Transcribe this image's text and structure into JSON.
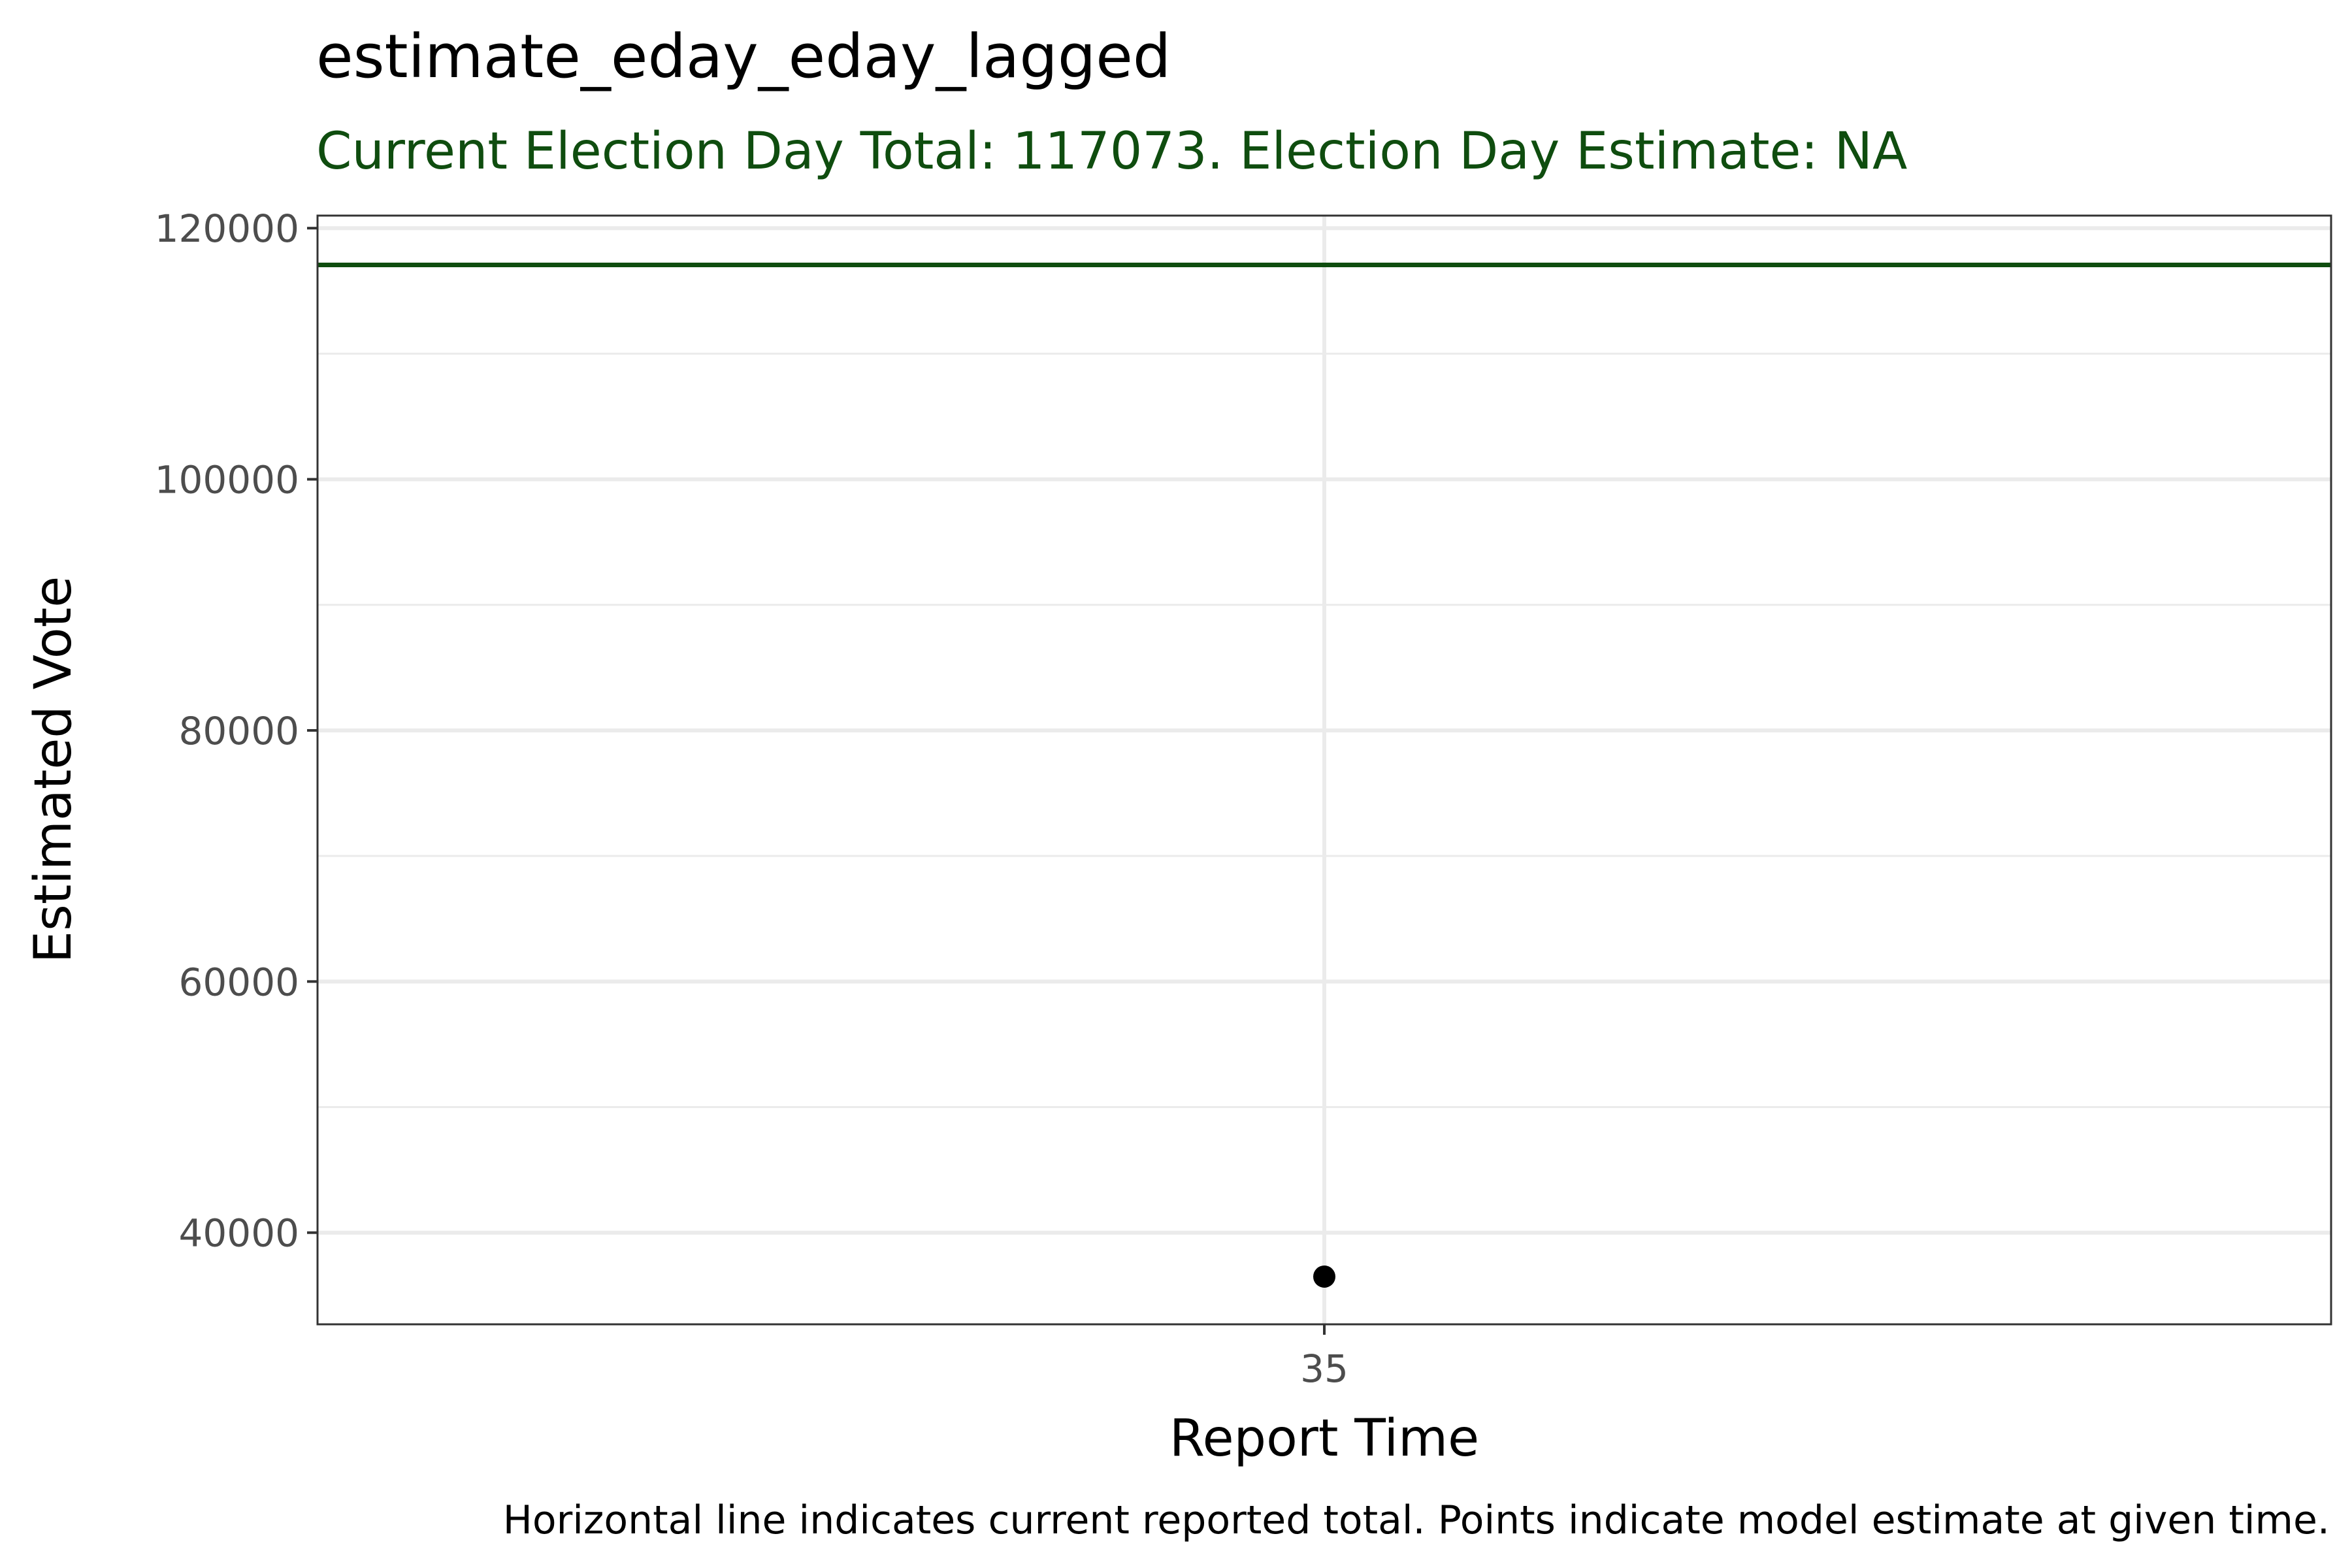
{
  "chart_data": {
    "type": "scatter",
    "title": "estimate_eday_eday_lagged",
    "subtitle": "Current Election Day Total: 117073. Election Day Estimate: NA",
    "xlabel": "Report Time",
    "ylabel": "Estimated Vote",
    "caption": "Horizontal line indicates current reported total. Points indicate model estimate at given time.",
    "x_ticks": [
      "35"
    ],
    "y_ticks": [
      "40000",
      "60000",
      "80000",
      "100000",
      "120000"
    ],
    "ylim": [
      32700,
      121000
    ],
    "grid": true,
    "reference_line": {
      "y": 117073
    },
    "series": [
      {
        "x": [
          "35"
        ],
        "y": [
          36500
        ]
      }
    ],
    "colors": {
      "accent": "#0f4d0f",
      "point": "#000000",
      "grid": "#ebebeb",
      "panel_border": "#333333"
    }
  }
}
